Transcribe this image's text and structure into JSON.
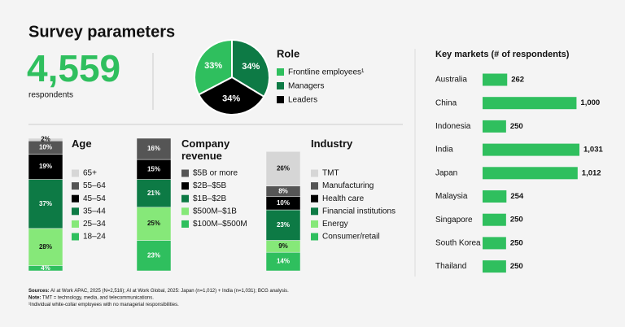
{
  "title": "Survey parameters",
  "stat": {
    "value": "4,559",
    "label": "respondents"
  },
  "chart_data": [
    {
      "type": "pie",
      "title": "Role",
      "categories": [
        "Frontline employees¹",
        "Managers",
        "Leaders"
      ],
      "values": [
        33,
        34,
        34
      ],
      "value_labels": [
        "33%",
        "34%",
        "34%"
      ],
      "colors": [
        "#2fbf5e",
        "#0d7a45",
        "#000000"
      ]
    },
    {
      "type": "stacked_bar",
      "title": "Age",
      "ylim": [
        0,
        100
      ],
      "series": [
        {
          "name": "18–24",
          "color": "#2fbf5e",
          "values": [
            4
          ],
          "value_labels": [
            "4%"
          ]
        },
        {
          "name": "25–34",
          "color": "#86e879",
          "values": [
            28
          ],
          "value_labels": [
            "28%"
          ]
        },
        {
          "name": "35–44",
          "color": "#0d7a45",
          "values": [
            37
          ],
          "value_labels": [
            "37%"
          ]
        },
        {
          "name": "45–54",
          "color": "#000000",
          "values": [
            19
          ],
          "value_labels": [
            "19%"
          ]
        },
        {
          "name": "55–64",
          "color": "#555555",
          "values": [
            10
          ],
          "value_labels": [
            "10%"
          ]
        },
        {
          "name": "65+",
          "color": "#d6d6d6",
          "values": [
            2
          ],
          "value_labels": [
            "2%"
          ]
        }
      ]
    },
    {
      "type": "stacked_bar",
      "title": "Company revenue",
      "ylim": [
        0,
        100
      ],
      "series": [
        {
          "name": "$100M–$500M",
          "color": "#2fbf5e",
          "values": [
            23
          ],
          "value_labels": [
            "23%"
          ]
        },
        {
          "name": "$500M–$1B",
          "color": "#86e879",
          "values": [
            25
          ],
          "value_labels": [
            "25%"
          ]
        },
        {
          "name": "$1B–$2B",
          "color": "#0d7a45",
          "values": [
            21
          ],
          "value_labels": [
            "21%"
          ]
        },
        {
          "name": "$2B–$5B",
          "color": "#000000",
          "values": [
            15
          ],
          "value_labels": [
            "15%"
          ]
        },
        {
          "name": "$5B or more",
          "color": "#555555",
          "values": [
            16
          ],
          "value_labels": [
            "16%"
          ]
        }
      ]
    },
    {
      "type": "stacked_bar",
      "title": "Industry",
      "ylim": [
        0,
        100
      ],
      "series": [
        {
          "name": "Consumer/retail",
          "color": "#2fbf5e",
          "values": [
            14
          ],
          "value_labels": [
            "14%"
          ]
        },
        {
          "name": "Energy",
          "color": "#86e879",
          "values": [
            9
          ],
          "value_labels": [
            "9%"
          ]
        },
        {
          "name": "Financial institutions",
          "color": "#0d7a45",
          "values": [
            23
          ],
          "value_labels": [
            "23%"
          ]
        },
        {
          "name": "Health care",
          "color": "#000000",
          "values": [
            10
          ],
          "value_labels": [
            "10%"
          ]
        },
        {
          "name": "Manufacturing",
          "color": "#555555",
          "values": [
            8
          ],
          "value_labels": [
            "8%"
          ]
        },
        {
          "name": "TMT",
          "color": "#d6d6d6",
          "values": [
            26
          ],
          "value_labels": [
            "26%"
          ]
        }
      ]
    },
    {
      "type": "hbar",
      "title": "Key markets (# of respondents)",
      "color": "#2fbf5e",
      "categories": [
        "Australia",
        "China",
        "Indonesia",
        "India",
        "Japan",
        "Malaysia",
        "Singapore",
        "South Korea",
        "Thailand"
      ],
      "values": [
        262,
        1000,
        250,
        1031,
        1012,
        254,
        250,
        250,
        250
      ],
      "value_labels": [
        "262",
        "1,000",
        "250",
        "1,031",
        "1,012",
        "254",
        "250",
        "250",
        "250"
      ]
    }
  ],
  "footnotes": [
    {
      "label": "Sources:",
      "text": " AI at Work APAC, 2025 (N=2,516); AI at Work Global, 2025: Japan (n=1,012) + India (n=1,031); BCG analysis."
    },
    {
      "label": "Note:",
      "text": " TMT = technology, media, and telecommunications."
    },
    {
      "label": "",
      "text": "¹Individual white-collar employees with no managerial responsibilities."
    }
  ]
}
